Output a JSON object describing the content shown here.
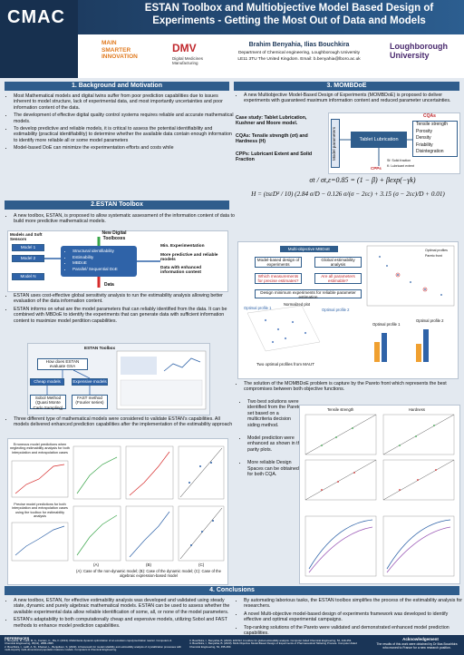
{
  "header": {
    "logo": "CMAC",
    "title": "ESTAN Toolbox and Multiobjective Model Based Design of Experiments - Getting the Most Out of Data and Models",
    "authors": "Brahim Benyahia, Ilias Bouchkira",
    "affiliation": "Department of Chemical engineering, Loughborough University",
    "address": "LE11 3TU The United Kingdom. Email: b.benyahia@lboro.ac.uk",
    "logos": [
      "MAIN SMARTER INNOVATION",
      "DMV",
      "Digital Medicines Manufacturing",
      "Loughborough University"
    ]
  },
  "background": {
    "heading": "1. Background and Motivation",
    "bullets": [
      "Most Mathematical models and digital twins suffer from poor prediction capabilities due to issues inherent to model structure, lack of experimental data, and most importantly uncertainties and poor information content of the data.",
      "The development of effective digital quality control systems requires reliable and accurate mathematical models.",
      "To develop predictive and reliable models, it is critical to assess the potential identifiability and estimability (practical identifiability) to determine whether the available data contain enough information to identify more reliable all or some model parameters",
      "Model-based DoE can minimize the experimentation efforts and costs while"
    ]
  },
  "estan": {
    "heading": "2.ESTAN Toolbox",
    "intro": "A new toolbox, ESTAN, is proposed to allow systematic assessment of the information content of data to build more predictive mathematical models.",
    "diagram": {
      "models_title": "Models and Soft Sensors",
      "models": [
        "Model 1",
        "Model 2",
        "Model N"
      ],
      "toolbox_title": "New Digital Toolboxes",
      "tools": [
        "Structural identifiability",
        "Estimability",
        "MBDoE",
        "Parallel/ Sequential DoE"
      ],
      "outputs": [
        "Min. Experimentation",
        "More predictive and reliable models",
        "Data with enhanced information content"
      ],
      "data": "Data"
    },
    "bullets": [
      "ESTAN uses cost-effective global sensitivity analysis to run the estimability analysis allowing better evaluation of the data information content.",
      "ESTAN informs on what are the model parameters that can reliably identified from the data. It can be combined with MBDoE to identify the experiments that can generate data with sufficient information content to maximize model perdition capabilities."
    ],
    "flow": {
      "panel": "ESTAN Toolbox",
      "question": "How does ESTAN evaluate GSA",
      "cheap": "Cheap models",
      "expensive": "Expensive models",
      "sobol": "Sobol Method (Quasi Monte Carlo Sampling)",
      "fast": "FAST method (Fourier series)"
    },
    "bullet3": "Three different type of mathematical models were considered to validate ESTAN's capabilities. All models delivered enhanced prediction capabilities after the implementation of the estimability approach",
    "figure": {
      "note1": "Erroneous model predictions when neglecting estimability analysis for both interpolation and extrapolation cases",
      "note2": "Precise model predictions for both interpolation and extrapolation cases using the toolbox for estimability analysis",
      "panels": [
        "(A)",
        "(B)",
        "(C)"
      ],
      "caption": "(A): Case of the non-dynamic model; (B): Case of the dynamic model; (C): Case of the algebraic expression-based model"
    }
  },
  "mombdoe": {
    "heading": "3. MOMBDoE",
    "intro": "A new Multiobjective Model-Based Design of Experiments (MOMBDoE) is proposed to deliver experiments with guaranteed maximum information content and reduced parameter uncertainties.",
    "case_study": "Case study: Tablet Lubrication, Kushner and Moore model.",
    "cqas_text": "CQAs: Tensile strength (σt) and Hardness (H)",
    "cpps_text": "CPPs: Lubricant Extent and Solid Fraction",
    "diagram": {
      "params": "Model parameters",
      "process": "Tablet Lubrication",
      "cqas_title": "CQAs",
      "cqas": [
        "Tensile strength",
        "Porosity",
        "Density",
        "Friability",
        "Disintegration"
      ],
      "cpps": "CPPs",
      "legend": [
        "Sf: Solid fraction",
        "K: Lubricant extent"
      ]
    },
    "eq1": "σt / σt,ε=0.85 = (1 − β) + βexp(−γk)",
    "eq2": "H = (tsεD² / 10) (2.84 σ/D − 0.126 σ/(σ − 2εc) + 3.15 (σ − 2εc)/D + 0.01)",
    "figure": {
      "flow_title": "Multi-objective MBDoE",
      "boxes": [
        "Model-based design of experiments",
        "Global estimability analysis",
        "Which measurements for precise estimates?",
        "Are all parameters estimable?"
      ],
      "design": "Design minimum experiments for reliable parameter estimation",
      "plot_title": "Two optimal profiles from MAUT",
      "labels": [
        "Optimal profile 1",
        "Optimal profile 2",
        "Normalized plot"
      ],
      "pareto_legend": [
        "Optimal profiles",
        "Pareto front"
      ]
    },
    "bullet2": "The solution of the MOMBDoE problem is capture by the Pareto front which represents the best compromises between both objective functions.",
    "bullets": [
      "Two best solutions were identified from the Pareto set based on a multicriteria decision siding method.",
      "Model prediction were enhanced as shown in the parity plots.",
      "More reliable Design Spaces can be obtained for both CQA."
    ],
    "plots": [
      "Tensile strength",
      "Hardness"
    ]
  },
  "conclusions": {
    "heading": "4. Conclusions",
    "left": [
      "A new toolbox, ESTAN, for effective estimability analysis was developed and validated using steady state, dynamic and purely algebraic mathematical models. ESTAN can be used to assess whether the available experimental data allow reliable identification of some, all, or none of the model parameters.",
      "ESTAN's adaptability to both computationally cheap and expensive models, utilizing Sobol and FAST methods to enhance model prediction capabilities."
    ],
    "right": [
      "By automating laborious tasks, the ESTAN toolbox simplifies the process of the estimability analysis for researchers.",
      "A novel Multi-objective model-based design of experiments framework was developed to identify effective and optimal experimental campaigns.",
      "Top-ranking solutions of the Pareto were validated and demonstrated enhanced model prediction capabilities."
    ]
  },
  "references": {
    "heading": "REFERENCES",
    "items": [
      "1. Benyahia, B., Latifi, M. A., Fonteix, C., Pla, F. (2013). Multicriteria dynamic optimization of an emulsion copolymerization reactor. Computers & Chemical Engineering, 35(12), 2886-2895.",
      "2. Bouchkira, I., Latifi, A. M., Khamar, L., Benjelloun, S. (2022). A framework for model reliability and estimability analysis of crystallization processes with multi-impurity multi-dimensional population balance models. Computers & Chemical Engineering.",
      "3. Bouchkira, I., Benyahia, B. (2023). ESTAN: A toolbox for global estimability analysis. Computer Aided Chemical Engineering, 52, 449-454.",
      "4. Bouchkira, I., Benyahia, B. (2023). Multi-Objective Model-Based Design of Experiments of Pharmaceutical Tableting Process. Computer Aided Chemical Engineering, 52, 455-460."
    ]
  },
  "acknowledgement": {
    "heading": "Acknowledgement",
    "text": "The results of this work were obtained by Dr Ilias Bouchkira who moved to France for a new research position."
  }
}
